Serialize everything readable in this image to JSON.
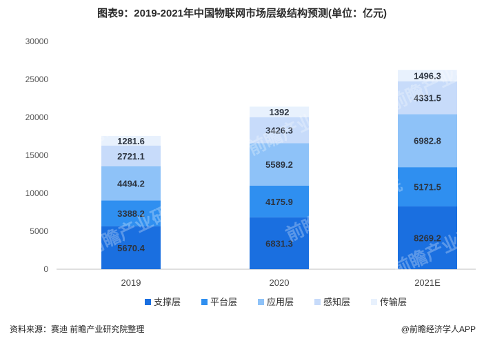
{
  "title": "图表9：2019-2021年中国物联网市场层级结构预测(单位：亿元)",
  "source": "资料来源：赛迪 前瞻产业研究院整理",
  "credit": "@前瞻经济学人APP",
  "watermark": "前瞻产业研究院",
  "chart_data": {
    "type": "bar",
    "stacked": true,
    "categories": [
      "2019",
      "2020",
      "2021E"
    ],
    "series": [
      {
        "name": "支撑层",
        "color": "#1a6fe0",
        "values": [
          5670.4,
          6831.3,
          8269.2
        ]
      },
      {
        "name": "平台层",
        "color": "#2f8ff0",
        "values": [
          3388.2,
          4175.9,
          5171.5
        ]
      },
      {
        "name": "应用层",
        "color": "#8ec2f8",
        "values": [
          4494.2,
          5589.2,
          6982.8
        ]
      },
      {
        "name": "感知层",
        "color": "#c7dbfa",
        "values": [
          2721.1,
          3426.3,
          4331.5
        ]
      },
      {
        "name": "传输层",
        "color": "#e8f1fd",
        "values": [
          1281.6,
          1392,
          1496.3
        ]
      }
    ],
    "value_labels": [
      [
        "5670.4",
        "6831.3",
        "8269.2"
      ],
      [
        "3388.2",
        "4175.9",
        "5171.5"
      ],
      [
        "4494.2",
        "5589.2",
        "6982.8"
      ],
      [
        "2721.1",
        "3426.3",
        "4331.5"
      ],
      [
        "1281.6",
        "1392",
        "1496.3"
      ]
    ],
    "ylim": [
      0,
      30000
    ],
    "yticks": [
      "0",
      "5000",
      "10000",
      "15000",
      "20000",
      "25000",
      "30000"
    ],
    "grid": false,
    "legend_position": "bottom"
  }
}
